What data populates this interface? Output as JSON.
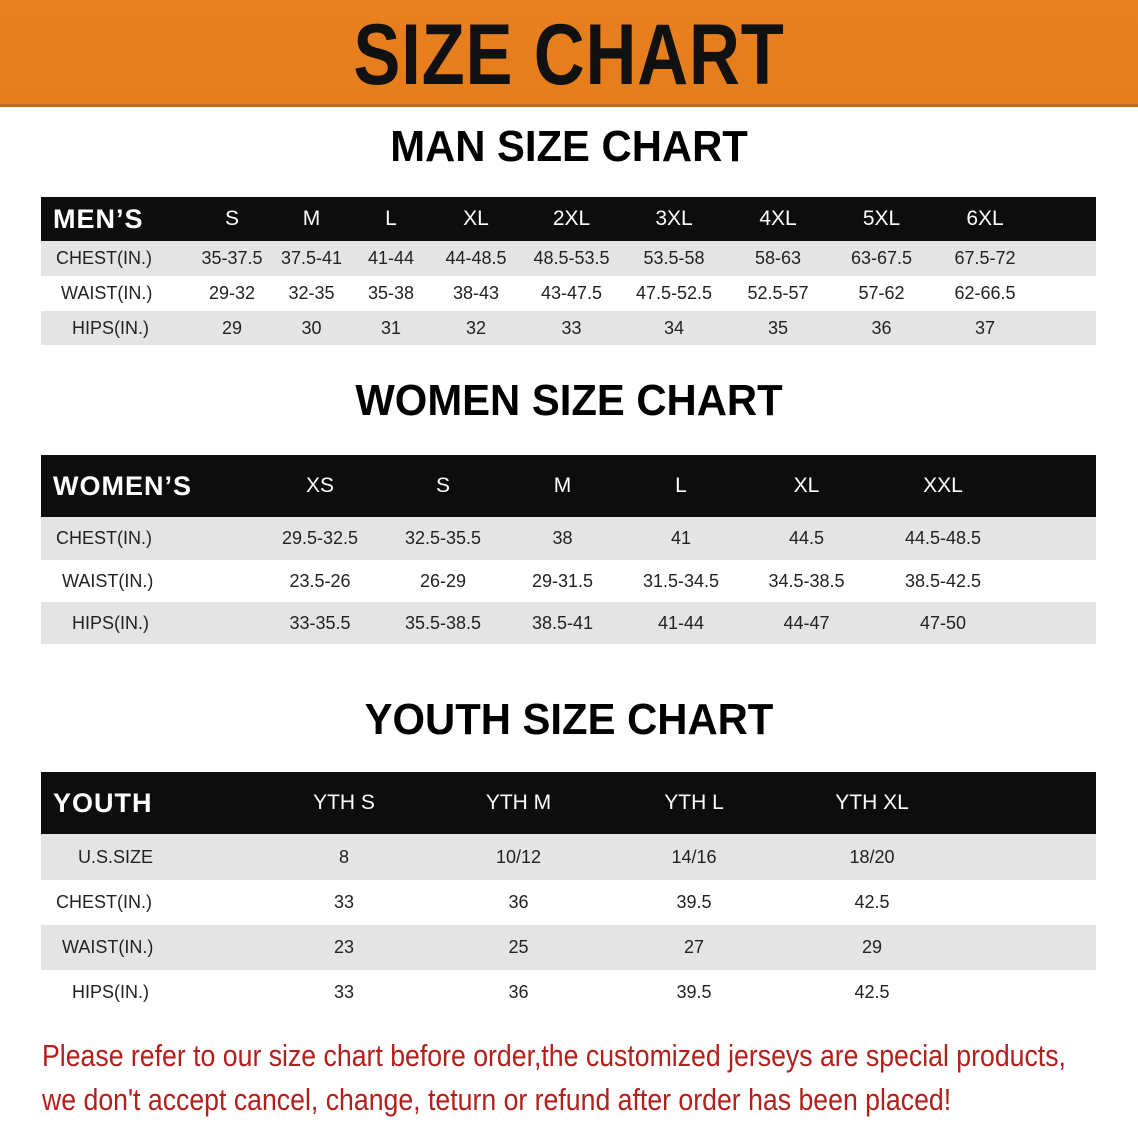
{
  "banner": {
    "title": "SIZE CHART",
    "color": "#e8801f"
  },
  "men": {
    "title": "MAN SIZE CHART",
    "header": [
      "MEN’S",
      "S",
      "M",
      "L",
      "XL",
      "2XL",
      "3XL",
      "4XL",
      "5XL",
      "6XL"
    ],
    "rows": [
      [
        "CHEST(IN.)",
        "35-37.5",
        "37.5-41",
        "41-44",
        "44-48.5",
        "48.5-53.5",
        "53.5-58",
        "58-63",
        "63-67.5",
        "67.5-72"
      ],
      [
        "WAIST(IN.)",
        "29-32",
        "32-35",
        "35-38",
        "38-43",
        "43-47.5",
        "47.5-52.5",
        "52.5-57",
        "57-62",
        "62-66.5"
      ],
      [
        "HIPS(IN.)",
        "29",
        "30",
        "31",
        "32",
        "33",
        "34",
        "35",
        "36",
        "37"
      ]
    ]
  },
  "women": {
    "title": "WOMEN SIZE CHART",
    "header": [
      "WOMEN’S",
      "XS",
      "S",
      "M",
      "L",
      "XL",
      "XXL"
    ],
    "rows": [
      [
        "CHEST(IN.)",
        "29.5-32.5",
        "32.5-35.5",
        "38",
        "41",
        "44.5",
        "44.5-48.5"
      ],
      [
        "WAIST(IN.)",
        "23.5-26",
        "26-29",
        "29-31.5",
        "31.5-34.5",
        "34.5-38.5",
        "38.5-42.5"
      ],
      [
        "HIPS(IN.)",
        "33-35.5",
        "35.5-38.5",
        "38.5-41",
        "41-44",
        "44-47",
        "47-50"
      ]
    ]
  },
  "youth": {
    "title": "YOUTH SIZE CHART",
    "header": [
      "YOUTH",
      "YTH S",
      "YTH M",
      "YTH L",
      "YTH XL"
    ],
    "rows": [
      [
        "U.S.SIZE",
        "8",
        "10/12",
        "14/16",
        "18/20"
      ],
      [
        "CHEST(IN.)",
        "33",
        "36",
        "39.5",
        "42.5"
      ],
      [
        "WAIST(IN.)",
        "23",
        "25",
        "27",
        "29"
      ],
      [
        "HIPS(IN.)",
        "33",
        "36",
        "39.5",
        "42.5"
      ]
    ]
  },
  "notes": [
    "Please refer to our size chart before order,the customized jerseys are special products,",
    "we don't accept cancel, change, teturn or refund after order has been placed!"
  ],
  "note_color": "#b3201c"
}
